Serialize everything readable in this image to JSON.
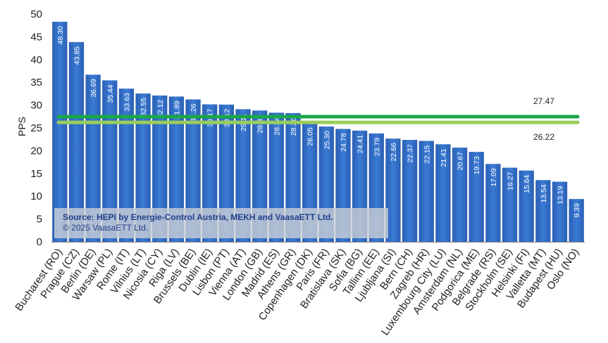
{
  "chart_data": {
    "type": "bar",
    "ylabel": "PPS",
    "ylim": [
      0,
      50
    ],
    "yticks": [
      0,
      5,
      10,
      15,
      20,
      25,
      30,
      35,
      40,
      45,
      50
    ],
    "grid": false,
    "categories": [
      "Bucharest (RO)",
      "Prague (CZ)",
      "Berlin (DE)",
      "Warsaw (PL)",
      "Rome (IT)",
      "Vilnius (LT)",
      "Nicosia (CY)",
      "Riga (LV)",
      "Brussels (BE)",
      "Dublin (IE)",
      "Lisbon (PT)",
      "Vienna (AT)",
      "London (GB)",
      "Madrid (ES)",
      "Athens (GR)",
      "Copenhagen (DK)",
      "Paris (FR)",
      "Bratislava (SK)",
      "Sofia (BG)",
      "Tallinn (EE)",
      "Ljubljana (SI)",
      "Bern (CH)",
      "Zagreb (HR)",
      "Luxembourg City (LU)",
      "Amsterdam (NL)",
      "Podgorica (ME)",
      "Belgrade (RS)",
      "Stockholm (SE)",
      "Helsinki (FI)",
      "Valletta (MT)",
      "Budapest (HU)",
      "Oslo (NO)"
    ],
    "values": [
      48.3,
      43.85,
      36.69,
      35.44,
      33.63,
      32.55,
      32.12,
      31.89,
      31.26,
      30.17,
      30.12,
      29.11,
      28.82,
      28.34,
      28.26,
      26.05,
      25.3,
      24.78,
      24.41,
      23.79,
      22.66,
      22.37,
      22.15,
      21.41,
      20.67,
      19.73,
      17.09,
      16.27,
      15.64,
      13.54,
      13.19,
      9.39
    ],
    "value_labels": [
      "48.30",
      "43.85",
      "36.69",
      "35.44",
      "33.63",
      "32.55",
      "32.12",
      "31.89",
      "31.26",
      "30.17",
      "30.12",
      "29.11",
      "28.82",
      "28.34",
      "28.26",
      "26.05",
      "25.30",
      "24.78",
      "24.41",
      "23.79",
      "22.66",
      "22.37",
      "22.15",
      "21.41",
      "20.67",
      "19.73",
      "17.09",
      "16.27",
      "15.64",
      "13.54",
      "13.19",
      "9.39"
    ],
    "reference_lines": [
      {
        "value": 27.47,
        "label": "27.47",
        "color": "#1aa64a"
      },
      {
        "value": 26.22,
        "label": "26.22",
        "color": "#9acd5a"
      }
    ],
    "bar_color": "#2f6bc4"
  },
  "source": {
    "line1": "Source: HEPI by Energie-Control Austria, MEKH and VaasaETT Ltd.",
    "line2": "© 2025 VaasaETT Ltd."
  }
}
